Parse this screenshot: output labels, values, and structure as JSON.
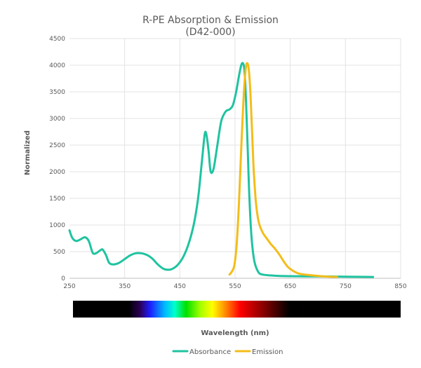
{
  "chart_data": {
    "type": "line",
    "title": "R-PE Absorption & Emission",
    "subtitle": "(D42-000)",
    "xlabel": "Wavelength (nm)",
    "ylabel": "Normalized",
    "xlim": [
      250,
      850
    ],
    "ylim": [
      0,
      4500
    ],
    "x_ticks": [
      "250",
      "350",
      "450",
      "550",
      "650",
      "750",
      "850"
    ],
    "y_ticks": [
      "0",
      "500",
      "1000",
      "1500",
      "2000",
      "2500",
      "3000",
      "3500",
      "4000",
      "4500"
    ],
    "grid": true,
    "legend_position": "bottom",
    "spectrum_bar": true,
    "series": [
      {
        "name": "Absorbance",
        "color": "#1fc3a0",
        "points": [
          [
            250,
            900
          ],
          [
            255,
            760
          ],
          [
            262,
            700
          ],
          [
            270,
            730
          ],
          [
            278,
            770
          ],
          [
            285,
            700
          ],
          [
            292,
            480
          ],
          [
            298,
            470
          ],
          [
            305,
            520
          ],
          [
            310,
            540
          ],
          [
            316,
            440
          ],
          [
            322,
            290
          ],
          [
            330,
            260
          ],
          [
            340,
            290
          ],
          [
            350,
            360
          ],
          [
            360,
            430
          ],
          [
            370,
            470
          ],
          [
            380,
            470
          ],
          [
            390,
            440
          ],
          [
            400,
            370
          ],
          [
            410,
            260
          ],
          [
            420,
            180
          ],
          [
            428,
            160
          ],
          [
            436,
            175
          ],
          [
            445,
            240
          ],
          [
            455,
            380
          ],
          [
            465,
            620
          ],
          [
            475,
            1000
          ],
          [
            483,
            1500
          ],
          [
            490,
            2200
          ],
          [
            495,
            2700
          ],
          [
            498,
            2700
          ],
          [
            502,
            2400
          ],
          [
            505,
            2050
          ],
          [
            508,
            1980
          ],
          [
            512,
            2100
          ],
          [
            518,
            2500
          ],
          [
            525,
            2950
          ],
          [
            533,
            3130
          ],
          [
            540,
            3170
          ],
          [
            546,
            3250
          ],
          [
            552,
            3500
          ],
          [
            558,
            3850
          ],
          [
            563,
            4040
          ],
          [
            567,
            3900
          ],
          [
            570,
            3300
          ],
          [
            573,
            2400
          ],
          [
            576,
            1500
          ],
          [
            580,
            750
          ],
          [
            585,
            320
          ],
          [
            592,
            120
          ],
          [
            600,
            70
          ],
          [
            620,
            50
          ],
          [
            650,
            40
          ],
          [
            700,
            35
          ],
          [
            750,
            30
          ],
          [
            800,
            25
          ]
        ]
      },
      {
        "name": "Emission",
        "color": "#f3bd1a",
        "points": [
          [
            540,
            70
          ],
          [
            545,
            140
          ],
          [
            549,
            260
          ],
          [
            553,
            650
          ],
          [
            557,
            1400
          ],
          [
            561,
            2400
          ],
          [
            565,
            3300
          ],
          [
            569,
            3900
          ],
          [
            572,
            4040
          ],
          [
            575,
            3900
          ],
          [
            578,
            3450
          ],
          [
            581,
            2700
          ],
          [
            584,
            2000
          ],
          [
            588,
            1400
          ],
          [
            593,
            1050
          ],
          [
            600,
            860
          ],
          [
            608,
            740
          ],
          [
            615,
            640
          ],
          [
            622,
            560
          ],
          [
            630,
            450
          ],
          [
            638,
            320
          ],
          [
            646,
            210
          ],
          [
            655,
            140
          ],
          [
            665,
            90
          ],
          [
            680,
            65
          ],
          [
            700,
            45
          ],
          [
            720,
            30
          ],
          [
            735,
            25
          ]
        ]
      }
    ]
  }
}
